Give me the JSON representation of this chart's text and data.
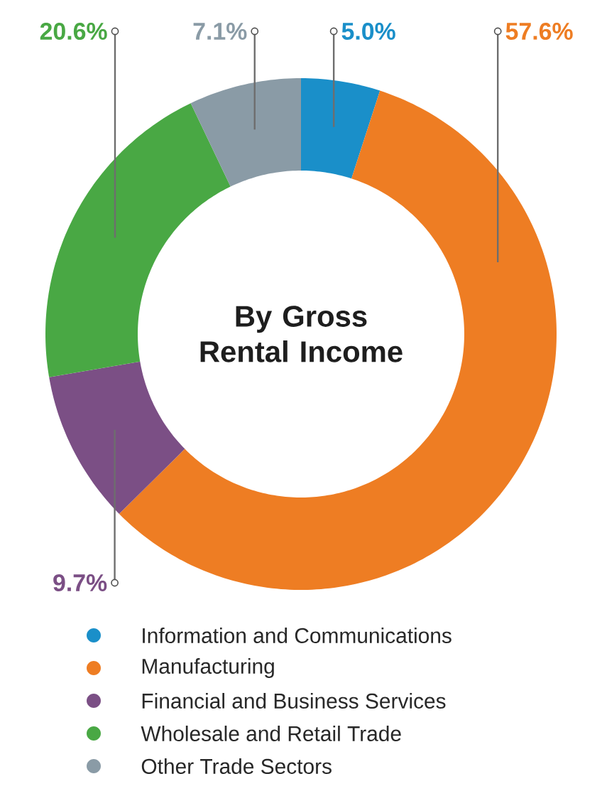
{
  "chart_data": {
    "type": "donut",
    "title": "By Gross Rental Income",
    "categories": [
      "Information and Communications",
      "Manufacturing",
      "Financial and Business Services",
      "Wholesale and Retail Trade",
      "Other Trade Sectors"
    ],
    "values": [
      5.0,
      57.6,
      9.7,
      20.6,
      7.1
    ],
    "value_labels": [
      "5.0%",
      "57.6%",
      "9.7%",
      "20.6%",
      "7.1%"
    ],
    "colors": [
      "#1a8fc9",
      "#ee7d23",
      "#7b4f85",
      "#49a844",
      "#8a9ba6"
    ],
    "legend": "bottom"
  }
}
